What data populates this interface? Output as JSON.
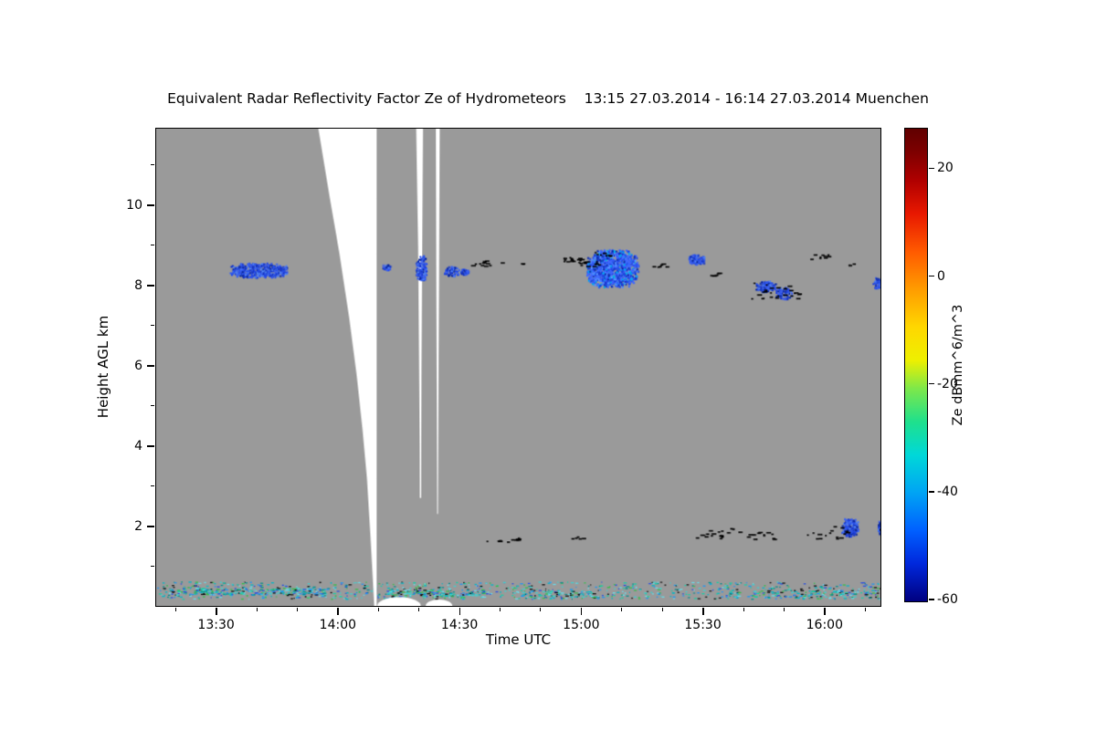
{
  "chart_data": {
    "type": "heatmap",
    "title": "Equivalent Radar Reflectivity Factor Ze of Hydrometeors    13:15 27.03.2014 - 16:14 27.03.2014 Muenchen",
    "xlabel": "Time UTC",
    "ylabel": "Height AGL km",
    "x_range_hours": [
      13.25,
      16.2333
    ],
    "x_ticks": [
      {
        "t": 13.5,
        "label": "13:30"
      },
      {
        "t": 14.0,
        "label": "14:00"
      },
      {
        "t": 14.5,
        "label": "14:30"
      },
      {
        "t": 15.0,
        "label": "15:00"
      },
      {
        "t": 15.5,
        "label": "15:30"
      },
      {
        "t": 16.0,
        "label": "16:00"
      }
    ],
    "x_minor_step_minutes": 10,
    "y_range_km": [
      0,
      11.93
    ],
    "y_ticks": [
      2,
      4,
      6,
      8,
      10
    ],
    "y_minor_ticks": [
      1,
      3,
      5,
      7,
      9,
      11
    ],
    "background_color": "#9a9a9a",
    "gap_color": "#ffffff",
    "grid": false,
    "colorbar": {
      "label": "Ze dBmm^6/m^3",
      "range": [
        -60.5,
        27.5
      ],
      "ticks": [
        20,
        0,
        -20,
        -40,
        -60
      ],
      "stops": [
        {
          "pos": 0,
          "color": "#600000"
        },
        {
          "pos": 5,
          "color": "#7e0000"
        },
        {
          "pos": 11,
          "color": "#b00000"
        },
        {
          "pos": 18,
          "color": "#e81800"
        },
        {
          "pos": 26,
          "color": "#ff5a00"
        },
        {
          "pos": 34,
          "color": "#ff9c00"
        },
        {
          "pos": 42,
          "color": "#ffd700"
        },
        {
          "pos": 49,
          "color": "#eef000"
        },
        {
          "pos": 55,
          "color": "#7de84a"
        },
        {
          "pos": 62,
          "color": "#1fe08c"
        },
        {
          "pos": 69,
          "color": "#00d8d8"
        },
        {
          "pos": 77,
          "color": "#00a4f4"
        },
        {
          "pos": 85,
          "color": "#0060ff"
        },
        {
          "pos": 92,
          "color": "#0028dc"
        },
        {
          "pos": 100,
          "color": "#000080"
        }
      ]
    },
    "gaps": [
      [
        [
          13.918,
          11.93
        ],
        [
          13.965,
          10.2
        ],
        [
          14.005,
          8.8
        ],
        [
          14.045,
          7.2
        ],
        [
          14.075,
          5.8
        ],
        [
          14.1,
          4.4
        ],
        [
          14.118,
          3.2
        ],
        [
          14.132,
          1.8
        ],
        [
          14.142,
          0.7
        ],
        [
          14.148,
          0
        ],
        [
          14.158,
          0
        ],
        [
          14.158,
          11.93
        ]
      ],
      [
        [
          14.321,
          11.93
        ],
        [
          14.349,
          11.93
        ],
        [
          14.346,
          9.0
        ],
        [
          14.343,
          6.0
        ],
        [
          14.342,
          4.0
        ],
        [
          14.3415,
          2.7
        ],
        [
          14.336,
          2.7
        ],
        [
          14.3355,
          4.0
        ],
        [
          14.333,
          6.0
        ],
        [
          14.329,
          9.0
        ]
      ],
      [
        [
          14.402,
          11.93
        ],
        [
          14.418,
          11.93
        ],
        [
          14.415,
          8.0
        ],
        [
          14.4125,
          5.0
        ],
        [
          14.411,
          2.3
        ],
        [
          14.4075,
          2.3
        ],
        [
          14.406,
          5.0
        ],
        [
          14.404,
          8.0
        ]
      ]
    ],
    "bottom_gaps": [
      {
        "t0": 14.16,
        "t1": 14.34,
        "hmax_km": 0.22
      },
      {
        "t0": 14.36,
        "t1": 14.47,
        "hmax_km": 0.16
      }
    ],
    "cloud_palette": [
      "#2446e0",
      "#3a62f2",
      "#1a38c6",
      "#0f2ba0",
      "#4d7ef2",
      "#2a52e8",
      "#3c5ce8"
    ],
    "cloud_patches": [
      {
        "t0": 13.55,
        "t1": 13.79,
        "h0": 8.22,
        "h1": 8.58,
        "density": 0.55
      },
      {
        "t0": 14.175,
        "t1": 14.215,
        "h0": 8.4,
        "h1": 8.56,
        "density": 0.5
      },
      {
        "t0": 14.318,
        "t1": 14.362,
        "h0": 8.1,
        "h1": 8.78,
        "density": 0.5
      },
      {
        "t0": 14.435,
        "t1": 14.495,
        "h0": 8.26,
        "h1": 8.5,
        "density": 0.5
      },
      {
        "t0": 14.5,
        "t1": 14.535,
        "h0": 8.3,
        "h1": 8.44,
        "density": 0.45
      },
      {
        "t0": 15.02,
        "t1": 15.235,
        "h0": 7.98,
        "h1": 8.92,
        "density": 0.6,
        "colors": [
          "#2d55f0",
          "#3f6cff",
          "#1c3cd2",
          "#5590ff",
          "#0f2fae",
          "#00aaee",
          "#2448e4",
          "#4066ff"
        ]
      },
      {
        "t0": 15.44,
        "t1": 15.505,
        "h0": 8.54,
        "h1": 8.8,
        "density": 0.55
      },
      {
        "t0": 15.715,
        "t1": 15.8,
        "h0": 7.86,
        "h1": 8.14,
        "density": 0.5
      },
      {
        "t0": 15.8,
        "t1": 15.865,
        "h0": 7.68,
        "h1": 7.97,
        "density": 0.45
      },
      {
        "t0": 16.2,
        "t1": 16.245,
        "h0": 7.95,
        "h1": 8.22,
        "density": 0.5
      },
      {
        "t0": 16.07,
        "t1": 16.14,
        "h0": 1.75,
        "h1": 2.2,
        "density": 0.6
      },
      {
        "t0": 16.22,
        "t1": 16.245,
        "h0": 1.8,
        "h1": 2.15,
        "density": 0.55
      }
    ],
    "speckles": [
      {
        "t0": 14.54,
        "t1": 14.68,
        "h0": 8.5,
        "h1": 8.64,
        "count": 12
      },
      {
        "t0": 14.75,
        "t1": 14.78,
        "h0": 8.55,
        "h1": 8.6,
        "count": 2
      },
      {
        "t0": 14.92,
        "t1": 15.01,
        "h0": 8.6,
        "h1": 8.74,
        "count": 16
      },
      {
        "t0": 14.99,
        "t1": 15.07,
        "h0": 8.5,
        "h1": 8.64,
        "count": 12
      },
      {
        "t0": 15.05,
        "t1": 15.12,
        "h0": 8.74,
        "h1": 8.86,
        "count": 8
      },
      {
        "t0": 15.29,
        "t1": 15.35,
        "h0": 8.48,
        "h1": 8.6,
        "count": 6
      },
      {
        "t0": 15.52,
        "t1": 15.57,
        "h0": 8.24,
        "h1": 8.36,
        "count": 5
      },
      {
        "t0": 15.7,
        "t1": 15.9,
        "h0": 7.68,
        "h1": 8.12,
        "count": 26
      },
      {
        "t0": 15.94,
        "t1": 16.03,
        "h0": 8.68,
        "h1": 8.8,
        "count": 9
      },
      {
        "t0": 16.09,
        "t1": 16.13,
        "h0": 8.52,
        "h1": 8.6,
        "count": 3
      },
      {
        "t0": 14.61,
        "t1": 14.76,
        "h0": 1.58,
        "h1": 1.72,
        "count": 11
      },
      {
        "t0": 14.96,
        "t1": 15.01,
        "h0": 1.62,
        "h1": 1.74,
        "count": 5
      },
      {
        "t0": 15.47,
        "t1": 15.58,
        "h0": 1.7,
        "h1": 1.9,
        "count": 14
      },
      {
        "t0": 15.6,
        "t1": 15.65,
        "h0": 1.82,
        "h1": 1.95,
        "count": 5
      },
      {
        "t0": 15.67,
        "t1": 15.79,
        "h0": 1.68,
        "h1": 1.86,
        "count": 12
      },
      {
        "t0": 15.93,
        "t1": 16.09,
        "h0": 1.68,
        "h1": 2.0,
        "count": 16
      },
      {
        "t0": 16.22,
        "t1": 16.245,
        "h0": 1.88,
        "h1": 2.0,
        "count": 3
      }
    ],
    "surface_layer": {
      "base_km": 0.18,
      "top_km": 0.61,
      "count": 850,
      "colors": [
        "#00b8c8",
        "#18cfa8",
        "#2196f3",
        "#2b50e0",
        "#40d0d0",
        "#0a8f8f",
        "#34c04a",
        "#111111",
        "#6adbe8"
      ],
      "dense_bands": [
        {
          "t0": 13.3,
          "t1": 13.95,
          "h0": 0.28,
          "h1": 0.46,
          "count": 220
        },
        {
          "t0": 14.2,
          "t1": 14.6,
          "h0": 0.22,
          "h1": 0.42,
          "count": 120
        },
        {
          "t0": 14.75,
          "t1": 15.05,
          "h0": 0.2,
          "h1": 0.4,
          "count": 90
        },
        {
          "t0": 15.6,
          "t1": 16.23,
          "h0": 0.2,
          "h1": 0.4,
          "count": 110
        }
      ]
    }
  }
}
